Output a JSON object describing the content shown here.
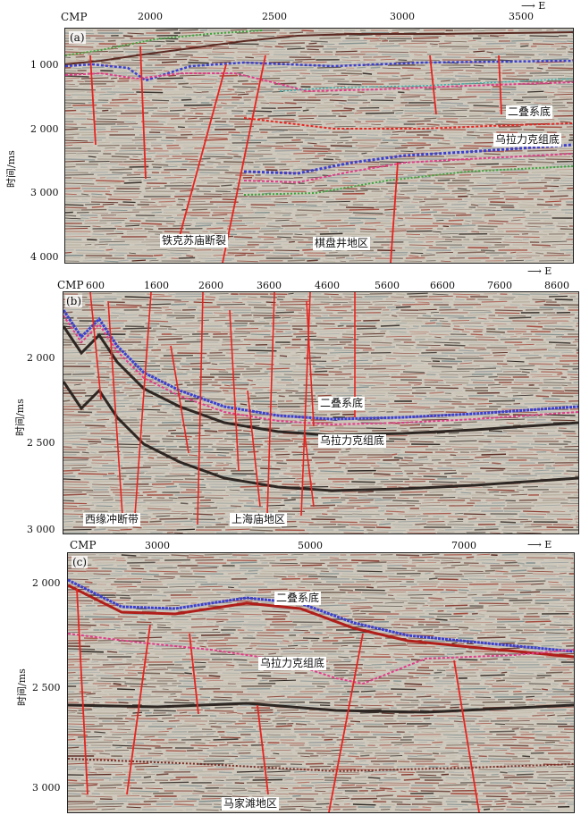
{
  "panels": [
    {
      "id": "a",
      "label": "(a)",
      "cmp_label": "CMP",
      "cmp_ticks": [
        "2000",
        "2500",
        "3000",
        "3500"
      ],
      "direction": "E",
      "y_label": "时间/ms",
      "y_ticks": [
        "1 000",
        "2 000",
        "3 000",
        "4 000"
      ],
      "annotations": [
        "二叠系底",
        "乌拉力克组底",
        "铁克苏庙断裂",
        "棋盘井地区"
      ]
    },
    {
      "id": "b",
      "label": "(b)",
      "cmp_label": "CMP",
      "cmp_ticks": [
        "600",
        "1600",
        "2600",
        "3600",
        "4600",
        "5600",
        "6600",
        "7600",
        "8600"
      ],
      "direction": "E",
      "y_label": "时间/ms",
      "y_ticks": [
        "2 000",
        "2 500",
        "3 000"
      ],
      "annotations": [
        "二叠系底",
        "乌拉力克组底",
        "西缘冲断带",
        "上海庙地区"
      ]
    },
    {
      "id": "c",
      "label": "(c)",
      "cmp_label": "CMP",
      "cmp_ticks": [
        "3000",
        "5000",
        "7000"
      ],
      "direction": "E",
      "y_label": "时间/ms",
      "y_ticks": [
        "2 000",
        "2 500",
        "3 000"
      ],
      "annotations": [
        "二叠系底",
        "乌拉力克组底",
        "马家滩地区"
      ]
    }
  ],
  "colors": {
    "fault": "#e8231f",
    "permian_base": "#3a3fd0",
    "wulalike_base": "#e33a8a",
    "green_horizon": "#3aa63a",
    "cyan_horizon": "#2ab3b3",
    "seismic_bg": "#cfc9bd"
  }
}
